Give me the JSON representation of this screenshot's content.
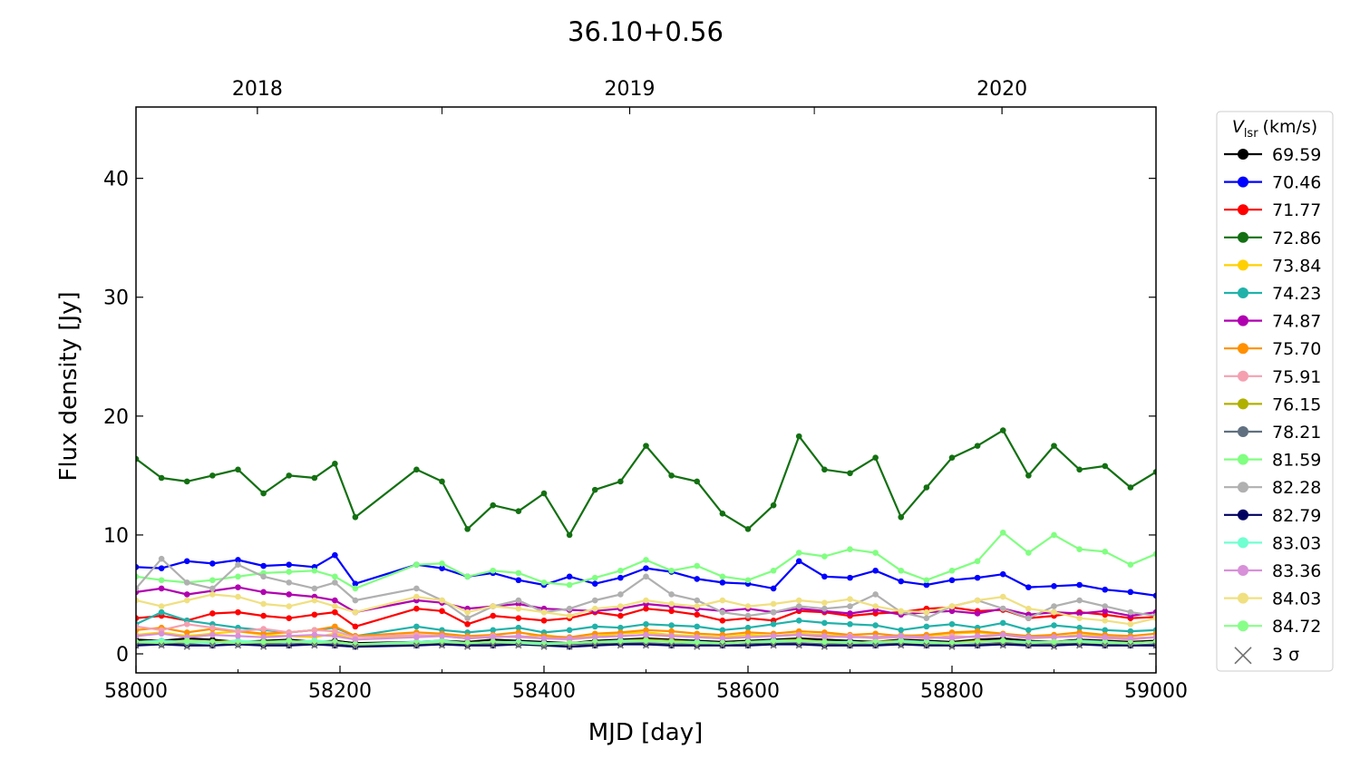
{
  "chart_data": {
    "type": "line",
    "title": "36.10+0.56",
    "x_label": "MJD [day]",
    "y_label": "Flux density [Jy]",
    "xlim": [
      58000,
      59000
    ],
    "ylim": [
      -1.6,
      46
    ],
    "xticks": [
      58000,
      58200,
      58400,
      58600,
      58800,
      59000
    ],
    "xminor": [
      58100,
      58300,
      58500,
      58700,
      58900
    ],
    "yticks": [
      0,
      10,
      20,
      30,
      40
    ],
    "x2ticks": [
      {
        "value": 58119,
        "label": "2018"
      },
      {
        "value": 58484,
        "label": "2019"
      },
      {
        "value": 58849,
        "label": "2020"
      }
    ],
    "x2minor": [
      58300,
      58665
    ],
    "legend_title": {
      "symbol": "V",
      "subscript": "lsr",
      "unit": "(km/s)"
    },
    "legend_position": "outside-right",
    "x": [
      58000,
      58025,
      58050,
      58075,
      58100,
      58125,
      58150,
      58175,
      58195,
      58215,
      58275,
      58300,
      58325,
      58350,
      58375,
      58400,
      58425,
      58450,
      58475,
      58500,
      58525,
      58550,
      58575,
      58600,
      58625,
      58650,
      58675,
      58700,
      58725,
      58750,
      58775,
      58800,
      58825,
      58850,
      58875,
      58900,
      58925,
      58950,
      58975,
      59000
    ],
    "series": [
      {
        "name": "69.59",
        "color": "#000000",
        "values": [
          1.2,
          1.1,
          1.3,
          1.2,
          1.0,
          1.1,
          1.2,
          1.0,
          1.1,
          0.9,
          1.0,
          1.1,
          1.0,
          1.2,
          1.1,
          1.0,
          0.9,
          1.1,
          1.2,
          1.3,
          1.2,
          1.1,
          1.0,
          1.1,
          1.2,
          1.3,
          1.2,
          1.1,
          1.0,
          1.2,
          1.1,
          1.0,
          1.2,
          1.3,
          1.1,
          1.0,
          1.2,
          1.1,
          1.0,
          1.1
        ]
      },
      {
        "name": "70.46",
        "color": "#0000ff",
        "values": [
          7.3,
          7.2,
          7.8,
          7.6,
          7.9,
          7.4,
          7.5,
          7.3,
          8.3,
          5.9,
          7.5,
          7.2,
          6.5,
          6.8,
          6.2,
          5.8,
          6.5,
          5.9,
          6.4,
          7.2,
          6.9,
          6.3,
          6.0,
          5.9,
          5.5,
          7.8,
          6.5,
          6.4,
          7.0,
          6.1,
          5.8,
          6.2,
          6.4,
          6.7,
          5.6,
          5.7,
          5.8,
          5.4,
          5.2,
          4.9
        ]
      },
      {
        "name": "71.77",
        "color": "#ff0000",
        "values": [
          3.0,
          3.2,
          2.8,
          3.4,
          3.5,
          3.2,
          3.0,
          3.3,
          3.5,
          2.3,
          3.8,
          3.6,
          2.5,
          3.2,
          3.0,
          2.8,
          3.0,
          3.5,
          3.2,
          3.8,
          3.6,
          3.3,
          2.8,
          3.0,
          2.8,
          3.6,
          3.5,
          3.2,
          3.4,
          3.5,
          3.8,
          3.9,
          3.6,
          3.7,
          3.0,
          3.2,
          3.5,
          3.3,
          3.0,
          3.1
        ]
      },
      {
        "name": "72.86",
        "color": "#137012",
        "values": [
          16.4,
          14.8,
          14.5,
          15.0,
          15.5,
          13.5,
          15.0,
          14.8,
          16.0,
          11.5,
          15.5,
          14.5,
          10.5,
          12.5,
          12.0,
          13.5,
          10.0,
          13.8,
          14.5,
          17.5,
          15.0,
          14.5,
          11.8,
          10.5,
          12.5,
          18.3,
          15.5,
          15.2,
          16.5,
          11.5,
          14.0,
          16.5,
          17.5,
          18.8,
          15.0,
          17.5,
          15.5,
          15.8,
          14.0,
          15.3
        ]
      },
      {
        "name": "73.84",
        "color": "#ffd000",
        "values": [
          1.6,
          1.8,
          1.5,
          1.7,
          1.9,
          1.6,
          1.5,
          1.4,
          1.7,
          1.2,
          1.5,
          1.6,
          1.3,
          1.5,
          1.4,
          1.6,
          1.3,
          1.5,
          1.7,
          1.8,
          1.6,
          1.5,
          1.4,
          1.6,
          1.5,
          1.7,
          1.6,
          1.5,
          1.4,
          1.6,
          1.5,
          1.7,
          1.8,
          1.6,
          1.5,
          1.4,
          1.6,
          1.5,
          1.3,
          1.4
        ]
      },
      {
        "name": "74.23",
        "color": "#20b2aa",
        "values": [
          2.5,
          3.5,
          2.8,
          2.5,
          2.2,
          2.0,
          1.8,
          2.0,
          2.2,
          1.5,
          2.3,
          2.0,
          1.8,
          2.0,
          2.2,
          1.8,
          2.0,
          2.3,
          2.2,
          2.5,
          2.4,
          2.3,
          2.0,
          2.2,
          2.5,
          2.8,
          2.6,
          2.5,
          2.4,
          2.0,
          2.3,
          2.5,
          2.2,
          2.6,
          2.0,
          2.4,
          2.2,
          2.0,
          1.9,
          2.0
        ]
      },
      {
        "name": "74.87",
        "color": "#b000b0",
        "values": [
          5.2,
          5.5,
          5.0,
          5.3,
          5.6,
          5.2,
          5.0,
          4.8,
          4.5,
          3.5,
          4.5,
          4.3,
          3.8,
          4.0,
          4.2,
          3.8,
          3.7,
          3.6,
          3.8,
          4.2,
          4.0,
          3.8,
          3.6,
          3.8,
          3.5,
          3.8,
          3.6,
          3.4,
          3.7,
          3.3,
          3.5,
          3.6,
          3.4,
          3.8,
          3.3,
          3.5,
          3.4,
          3.6,
          3.2,
          3.5
        ]
      },
      {
        "name": "75.70",
        "color": "#ff9000",
        "values": [
          2.0,
          2.2,
          1.8,
          2.1,
          1.9,
          1.7,
          1.8,
          2.0,
          2.3,
          1.5,
          1.8,
          1.7,
          1.5,
          1.6,
          1.8,
          1.5,
          1.4,
          1.7,
          1.8,
          2.0,
          1.9,
          1.7,
          1.6,
          1.8,
          1.7,
          1.9,
          1.8,
          1.6,
          1.7,
          1.5,
          1.6,
          1.8,
          1.9,
          1.7,
          1.5,
          1.6,
          1.8,
          1.6,
          1.5,
          1.7
        ]
      },
      {
        "name": "75.91",
        "color": "#f4a0b0",
        "values": [
          2.3,
          2.0,
          2.5,
          2.2,
          1.9,
          2.1,
          1.8,
          2.0,
          1.9,
          1.4,
          1.6,
          1.5,
          1.3,
          1.5,
          1.4,
          1.3,
          1.2,
          1.4,
          1.5,
          1.6,
          1.5,
          1.4,
          1.3,
          1.4,
          1.5,
          1.6,
          1.4,
          1.5,
          1.3,
          1.4,
          1.3,
          1.5,
          1.4,
          1.6,
          1.3,
          1.4,
          1.5,
          1.3,
          1.2,
          1.4
        ]
      },
      {
        "name": "76.15",
        "color": "#b0b000",
        "values": [
          1.0,
          1.1,
          0.9,
          1.0,
          1.1,
          0.9,
          1.0,
          1.1,
          1.0,
          0.8,
          0.9,
          1.0,
          0.9,
          1.0,
          0.9,
          0.8,
          0.9,
          1.0,
          1.1,
          1.2,
          1.1,
          1.0,
          0.9,
          1.0,
          1.1,
          1.2,
          1.0,
          0.9,
          1.0,
          1.1,
          1.0,
          0.9,
          1.1,
          1.0,
          0.9,
          1.0,
          1.1,
          1.0,
          0.9,
          1.0
        ]
      },
      {
        "name": "78.21",
        "color": "#607080",
        "values": [
          0.8,
          0.9,
          0.8,
          0.7,
          0.9,
          0.8,
          0.8,
          0.9,
          0.8,
          0.7,
          0.8,
          0.9,
          0.8,
          0.8,
          0.9,
          0.7,
          0.8,
          0.8,
          0.9,
          0.9,
          0.8,
          0.8,
          0.7,
          0.8,
          0.9,
          0.9,
          0.8,
          0.8,
          0.8,
          0.9,
          0.8,
          0.7,
          0.8,
          0.9,
          0.8,
          0.8,
          0.9,
          0.8,
          0.7,
          0.8
        ]
      },
      {
        "name": "81.59",
        "color": "#80ff80",
        "values": [
          6.5,
          6.2,
          6.0,
          6.2,
          6.5,
          6.8,
          6.9,
          7.0,
          6.5,
          5.5,
          7.5,
          7.6,
          6.5,
          7.0,
          6.8,
          6.0,
          5.8,
          6.4,
          7.0,
          7.9,
          7.0,
          7.4,
          6.5,
          6.2,
          7.0,
          8.5,
          8.2,
          8.8,
          8.5,
          7.0,
          6.2,
          7.0,
          7.8,
          10.2,
          8.5,
          10.0,
          8.8,
          8.6,
          7.5,
          8.4
        ]
      },
      {
        "name": "82.28",
        "color": "#b0b0b0",
        "values": [
          5.5,
          8.0,
          6.0,
          5.5,
          7.5,
          6.5,
          6.0,
          5.5,
          6.0,
          4.5,
          5.5,
          4.5,
          3.0,
          4.0,
          4.5,
          3.5,
          3.8,
          4.5,
          5.0,
          6.5,
          5.0,
          4.5,
          3.5,
          3.2,
          3.5,
          4.0,
          3.8,
          4.0,
          5.0,
          3.5,
          3.0,
          4.0,
          4.5,
          3.8,
          3.0,
          4.0,
          4.5,
          4.0,
          3.5,
          3.2
        ]
      },
      {
        "name": "82.79",
        "color": "#000060",
        "values": [
          0.7,
          0.8,
          0.7,
          0.7,
          0.8,
          0.7,
          0.7,
          0.8,
          0.7,
          0.6,
          0.7,
          0.8,
          0.7,
          0.7,
          0.8,
          0.7,
          0.6,
          0.7,
          0.8,
          0.8,
          0.7,
          0.7,
          0.7,
          0.7,
          0.8,
          0.8,
          0.7,
          0.7,
          0.7,
          0.8,
          0.7,
          0.7,
          0.7,
          0.8,
          0.7,
          0.7,
          0.8,
          0.7,
          0.7,
          0.7
        ]
      },
      {
        "name": "83.03",
        "color": "#70ffd0",
        "values": [
          1.0,
          1.1,
          1.0,
          0.9,
          1.1,
          1.0,
          1.0,
          1.1,
          1.0,
          0.8,
          1.0,
          1.1,
          0.9,
          1.0,
          1.0,
          0.9,
          0.9,
          1.0,
          1.1,
          1.1,
          1.0,
          1.0,
          0.9,
          1.0,
          1.1,
          1.1,
          1.0,
          1.0,
          0.9,
          1.1,
          1.0,
          0.9,
          1.0,
          1.1,
          1.0,
          1.0,
          1.1,
          1.0,
          0.9,
          1.0
        ]
      },
      {
        "name": "83.36",
        "color": "#d890d8",
        "values": [
          1.5,
          1.7,
          1.4,
          1.6,
          1.5,
          1.4,
          1.5,
          1.6,
          1.5,
          1.2,
          1.4,
          1.5,
          1.3,
          1.4,
          1.5,
          1.3,
          1.3,
          1.4,
          1.5,
          1.6,
          1.5,
          1.4,
          1.3,
          1.4,
          1.5,
          1.6,
          1.5,
          1.4,
          1.4,
          1.5,
          1.4,
          1.3,
          1.5,
          1.6,
          1.4,
          1.4,
          1.5,
          1.4,
          1.3,
          1.4
        ]
      },
      {
        "name": "84.03",
        "color": "#f0e080",
        "values": [
          4.5,
          4.0,
          4.5,
          5.0,
          4.8,
          4.2,
          4.0,
          4.5,
          4.0,
          3.5,
          4.8,
          4.5,
          3.5,
          4.0,
          3.8,
          3.5,
          3.2,
          3.8,
          4.0,
          4.5,
          4.2,
          4.0,
          4.5,
          4.0,
          4.2,
          4.5,
          4.3,
          4.6,
          4.0,
          3.6,
          3.5,
          4.0,
          4.5,
          4.8,
          3.8,
          3.5,
          3.0,
          2.8,
          2.5,
          3.0
        ]
      },
      {
        "name": "84.72",
        "color": "#88ff88",
        "values": [
          1.0,
          0.9,
          1.1,
          1.0,
          0.9,
          1.0,
          1.1,
          0.9,
          1.0,
          0.8,
          0.9,
          1.0,
          0.9,
          1.0,
          0.9,
          0.8,
          0.9,
          1.0,
          1.0,
          1.1,
          1.0,
          0.9,
          0.9,
          1.0,
          1.0,
          1.1,
          1.0,
          0.9,
          1.0,
          1.0,
          0.9,
          0.9,
          1.0,
          1.1,
          0.9,
          1.0,
          1.0,
          0.9,
          0.9,
          1.0
        ]
      },
      {
        "name": "3 σ",
        "color": "#707070",
        "marker": "x",
        "values": [
          0.7,
          0.7,
          0.6,
          0.7,
          0.7,
          0.6,
          0.7,
          0.7,
          0.7,
          0.6,
          0.7,
          0.7,
          0.6,
          0.7,
          0.7,
          0.6,
          0.6,
          0.7,
          0.7,
          0.7,
          0.7,
          0.6,
          0.7,
          0.7,
          0.7,
          0.7,
          0.6,
          0.7,
          0.7,
          0.7,
          0.7,
          0.6,
          0.7,
          0.7,
          0.7,
          0.6,
          0.7,
          0.7,
          0.7,
          0.7
        ]
      }
    ]
  }
}
